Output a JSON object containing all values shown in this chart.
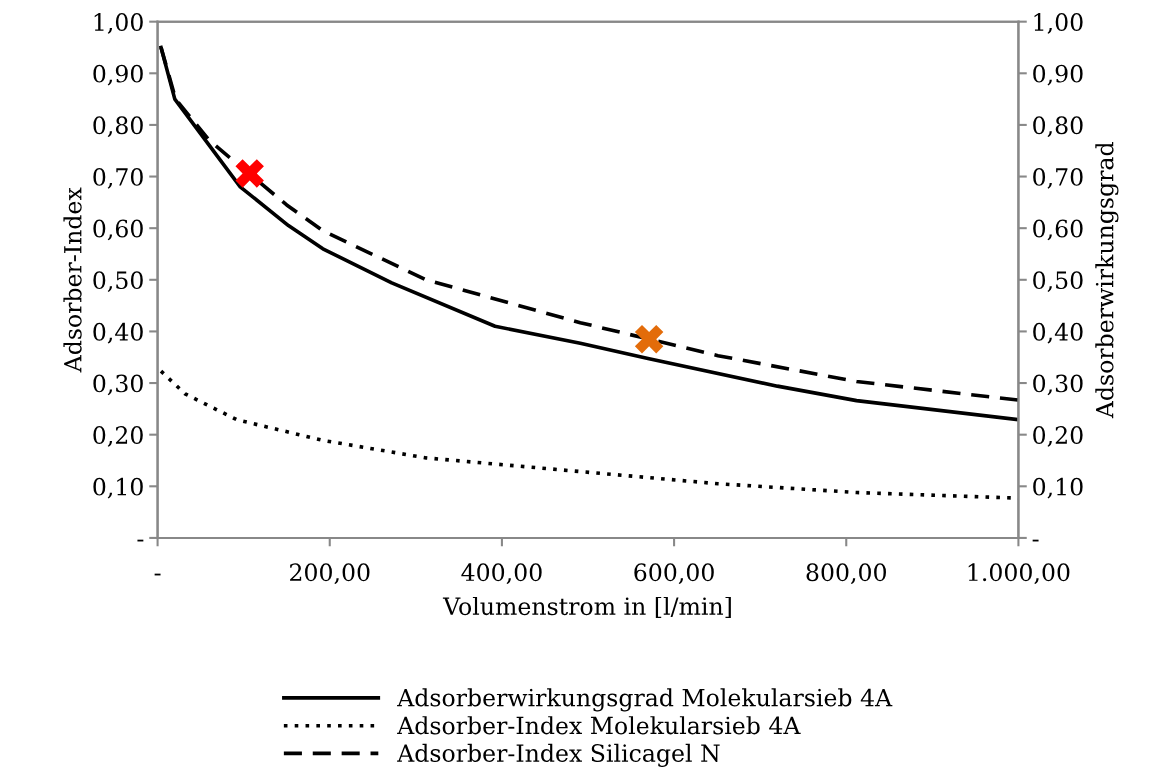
{
  "chart_data": {
    "type": "line",
    "xlabel": "Volumenstrom in [l/min]",
    "ylabel": "Adsorber-Index",
    "y2label": "Adsorberwirkungsgrad",
    "xlim": [
      0,
      1000
    ],
    "xticks": [
      {
        "value": 0,
        "label": "-"
      },
      {
        "value": 200,
        "label": "200,00"
      },
      {
        "value": 400,
        "label": "400,00"
      },
      {
        "value": 600,
        "label": "600,00"
      },
      {
        "value": 800,
        "label": "800,00"
      },
      {
        "value": 1000,
        "label": "1.000,00"
      }
    ],
    "ylim": [
      0,
      1
    ],
    "yticks": [
      {
        "value": 0,
        "label": "-"
      },
      {
        "value": 0.1,
        "label": "0,10"
      },
      {
        "value": 0.2,
        "label": "0,20"
      },
      {
        "value": 0.3,
        "label": "0,30"
      },
      {
        "value": 0.4,
        "label": "0,40"
      },
      {
        "value": 0.5,
        "label": "0,50"
      },
      {
        "value": 0.6,
        "label": "0,60"
      },
      {
        "value": 0.7,
        "label": "0,70"
      },
      {
        "value": 0.8,
        "label": "0,80"
      },
      {
        "value": 0.9,
        "label": "0,90"
      },
      {
        "value": 1,
        "label": "1,00"
      }
    ],
    "y2lim": [
      0,
      1
    ],
    "y2ticks": [
      {
        "value": 0,
        "label": "-"
      },
      {
        "value": 0.1,
        "label": "0,10"
      },
      {
        "value": 0.2,
        "label": "0,20"
      },
      {
        "value": 0.3,
        "label": "0,30"
      },
      {
        "value": 0.4,
        "label": "0,40"
      },
      {
        "value": 0.5,
        "label": "0,50"
      },
      {
        "value": 0.6,
        "label": "0,60"
      },
      {
        "value": 0.7,
        "label": "0,70"
      },
      {
        "value": 0.8,
        "label": "0,80"
      },
      {
        "value": 0.9,
        "label": "0,90"
      },
      {
        "value": 1,
        "label": "1,00"
      }
    ],
    "grid": false,
    "legend": "bottom",
    "series": [
      {
        "name": "Adsorberwirkungsgrad Molekularsieb 4A",
        "color": "#000000",
        "axis": "y2",
        "line_style": "solid",
        "x": [
          4,
          20,
          96,
          152,
          192,
          272,
          392,
          491,
          571,
          720,
          812,
          1000
        ],
        "values": [
          0.95,
          0.85,
          0.68,
          0.605,
          0.56,
          0.494,
          0.41,
          0.377,
          0.347,
          0.294,
          0.266,
          0.229
        ]
      },
      {
        "name": "Adsorber-Index Molekularsieb 4A",
        "color": "#000000",
        "line_style": "dotted",
        "x": [
          4,
          32,
          92,
          192,
          312,
          515,
          651,
          812,
          1000
        ],
        "values": [
          0.323,
          0.279,
          0.229,
          0.189,
          0.155,
          0.125,
          0.105,
          0.088,
          0.077
        ]
      },
      {
        "name": "Adsorber-Index Silicagel N",
        "color": "#000000",
        "line_style": "dashed",
        "x": [
          4,
          21,
          60,
          150,
          192,
          312,
          491,
          651,
          812,
          1000
        ],
        "values": [
          0.95,
          0.85,
          0.77,
          0.645,
          0.595,
          0.5,
          0.417,
          0.353,
          0.303,
          0.267
        ]
      },
      {
        "type": "scatter",
        "marker": "cross",
        "color": "#ff0000",
        "x": [
          107
        ],
        "values": [
          0.706
        ]
      },
      {
        "type": "scatter",
        "marker": "cross",
        "color": "#e36c0a",
        "x": [
          571
        ],
        "values": [
          0.385
        ]
      }
    ]
  }
}
